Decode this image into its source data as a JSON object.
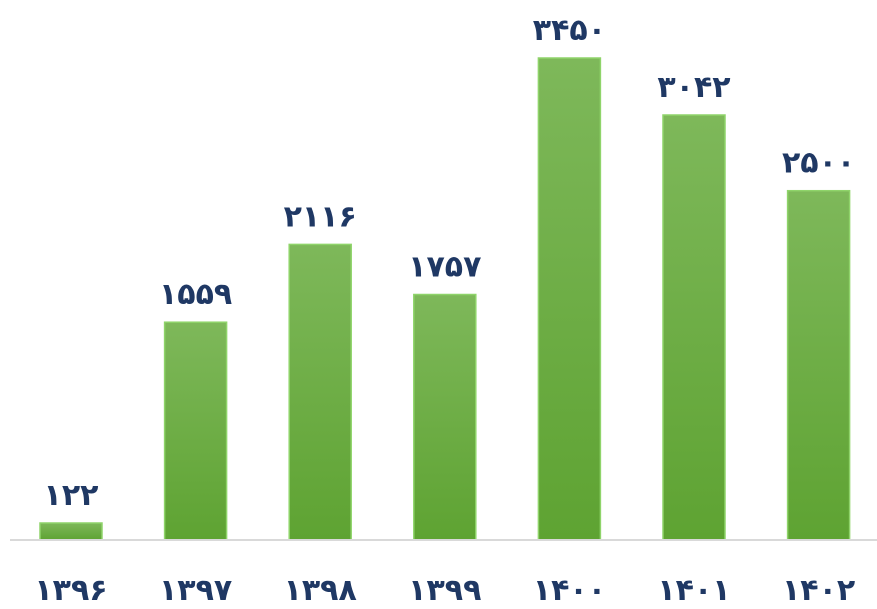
{
  "chart_data": {
    "type": "bar",
    "categories": [
      "۱۳۹۶",
      "۱۳۹۷",
      "۱۳۹۸",
      "۱۳۹۹",
      "۱۴۰۰",
      "۱۴۰۱",
      "۱۴۰۲"
    ],
    "values": [
      122,
      1559,
      2116,
      1757,
      3450,
      3042,
      2500
    ],
    "value_labels": [
      "۱۲۲",
      "۱۵۵۹",
      "۲۱۱۶",
      "۱۷۵۷",
      "۳۴۵۰",
      "۳۰۴۲",
      "۲۵۰۰"
    ],
    "title": "",
    "xlabel": "",
    "ylabel": "",
    "ylim": [
      0,
      3450
    ],
    "grid": false,
    "legend": "none",
    "colors": {
      "bar_top": "#7eb85a",
      "bar_bottom": "#5ea332",
      "bar_edge": "#8fd46a",
      "label": "#1f3864",
      "axis": "#d9d9d9"
    }
  }
}
